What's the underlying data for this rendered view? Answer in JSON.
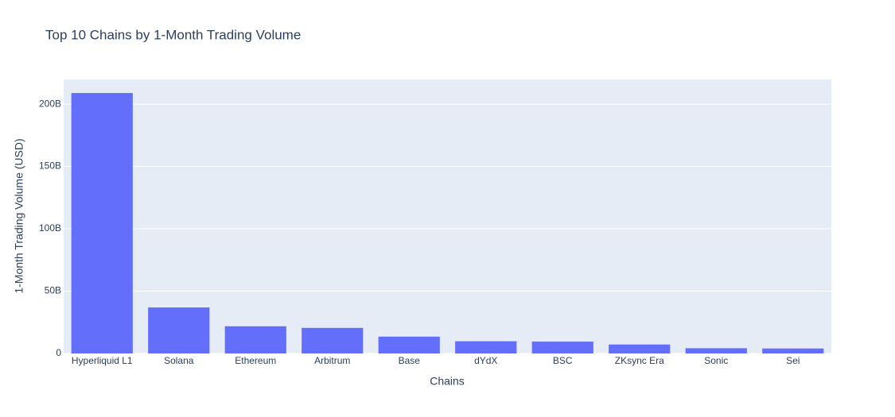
{
  "chart_data": {
    "type": "bar",
    "title": "Top 10 Chains by 1-Month Trading Volume",
    "x_label": "Chains",
    "y_label": "1-Month Trading Volume (USD)",
    "categories": [
      "Hyperliquid L1",
      "Solana",
      "Ethereum",
      "Arbitrum",
      "Base",
      "dYdX",
      "BSC",
      "ZKsync Era",
      "Sonic",
      "Sei"
    ],
    "values": [
      208900000000,
      36900000000,
      21800000000,
      20500000000,
      13500000000,
      9800000000,
      9500000000,
      7200000000,
      4200000000,
      4000000000
    ],
    "color": "#636efa",
    "ylim": [
      0,
      219800000000
    ],
    "yticks": [
      0,
      {
        "value": 50000000000,
        "label": "50B"
      },
      {
        "value": 100000000000,
        "label": "100B"
      },
      {
        "value": 150000000000,
        "label": "150B"
      },
      {
        "value": 200000000000,
        "label": "200B"
      }
    ],
    "grid": true
  }
}
